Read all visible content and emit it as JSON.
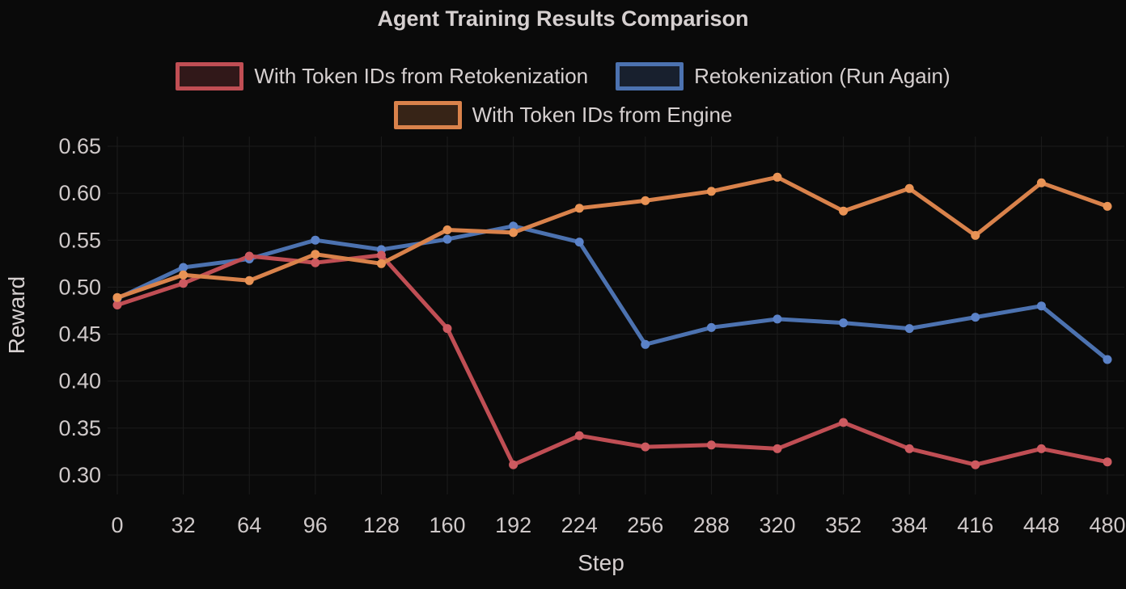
{
  "title": "Agent Training Results Comparison",
  "theme": {
    "background": "#0a0a0a",
    "text_color": "#d6d0d0",
    "tick_color": "#cfc9c9",
    "grid_color": "#1c1c1c",
    "legend_fill_alpha": 0.22
  },
  "chart_data": {
    "type": "line",
    "title": "Agent Training Results Comparison",
    "xlabel": "Step",
    "ylabel": "Reward",
    "xlim": [
      0,
      480
    ],
    "ylim": [
      0.3,
      0.65
    ],
    "grid": true,
    "legend_position": "top",
    "x_ticks": [
      0,
      32,
      64,
      96,
      128,
      160,
      192,
      224,
      256,
      288,
      320,
      352,
      384,
      416,
      448,
      480
    ],
    "y_ticks": [
      0.3,
      0.35,
      0.4,
      0.45,
      0.5,
      0.55,
      0.6,
      0.65
    ],
    "x": [
      0,
      32,
      64,
      96,
      128,
      160,
      192,
      224,
      256,
      288,
      320,
      352,
      384,
      416,
      448,
      480
    ],
    "series": [
      {
        "name": "With Token IDs from Retokenization",
        "color": "#c04e54",
        "marker_color": "#cd5a60",
        "values": [
          0.481,
          0.504,
          0.533,
          0.526,
          0.534,
          0.456,
          0.311,
          0.342,
          0.33,
          0.332,
          0.328,
          0.356,
          0.328,
          0.311,
          0.328,
          0.314
        ]
      },
      {
        "name": "Retokenization (Run Again)",
        "color": "#4c72b0",
        "marker_color": "#5b82c8",
        "values": [
          0.488,
          0.521,
          0.53,
          0.55,
          0.54,
          0.551,
          0.565,
          0.548,
          0.439,
          0.457,
          0.466,
          0.462,
          0.456,
          0.468,
          0.48,
          0.423
        ]
      },
      {
        "name": "With Token IDs from Engine",
        "color": "#d9824b",
        "marker_color": "#e99355",
        "values": [
          0.489,
          0.513,
          0.507,
          0.535,
          0.525,
          0.561,
          0.558,
          0.584,
          0.592,
          0.602,
          0.617,
          0.581,
          0.605,
          0.555,
          0.611,
          0.586
        ]
      }
    ],
    "draw_order": [
      1,
      0,
      2
    ]
  }
}
